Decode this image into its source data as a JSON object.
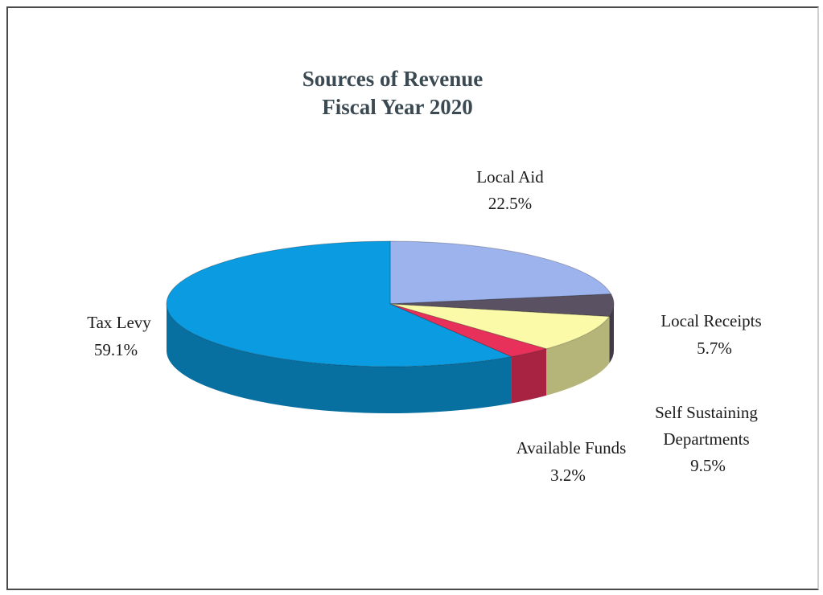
{
  "chart_data": {
    "type": "pie",
    "title": "Sources of Revenue",
    "subtitle": "Fiscal Year 2020",
    "slices": [
      {
        "name": "Local Aid",
        "value": 22.5,
        "label": "22.5%",
        "color": "#9db3ee"
      },
      {
        "name": "Local Receipts",
        "value": 5.7,
        "label": "5.7%",
        "color": "#5a5262"
      },
      {
        "name": "Self Sustaining Departments",
        "value": 9.5,
        "label": "9.5%",
        "color": "#fbfaa8"
      },
      {
        "name": "Available Funds",
        "value": 3.2,
        "label": "3.2%",
        "color": "#e8315a"
      },
      {
        "name": "Tax Levy",
        "value": 59.1,
        "label": "59.1%",
        "color": "#0b9be0"
      }
    ],
    "legend": "none"
  },
  "labels": {
    "local_aid": [
      "Local Aid",
      "22.5%"
    ],
    "local_receipts": [
      "Local Receipts",
      "5.7%"
    ],
    "self_sustaining": [
      "Self Sustaining",
      "Departments",
      "9.5%"
    ],
    "available_funds": [
      "Available Funds",
      "3.2%"
    ],
    "tax_levy": [
      "Tax Levy",
      "59.1%"
    ]
  }
}
